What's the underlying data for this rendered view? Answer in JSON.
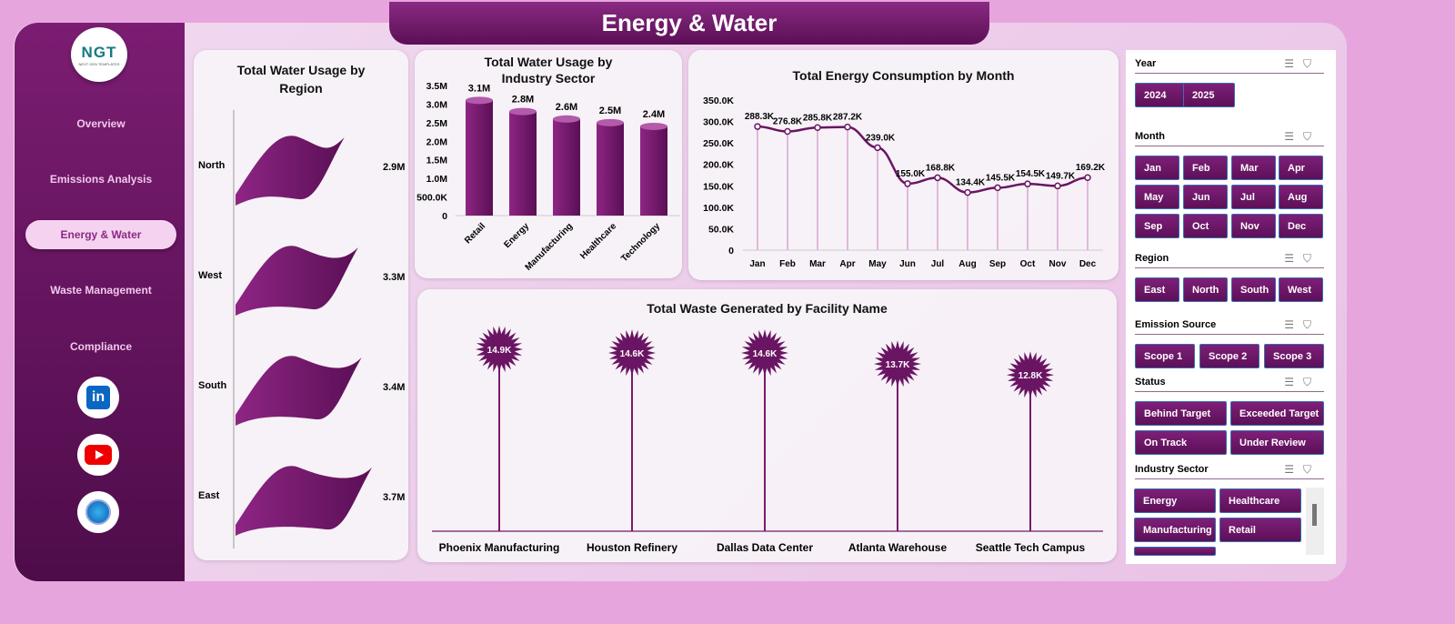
{
  "title": "Energy & Water",
  "logo": {
    "text": "NGT",
    "subtitle": "NEXT GEN TEMPLATES"
  },
  "nav": [
    {
      "label": "Overview"
    },
    {
      "label": "Emissions Analysis"
    },
    {
      "label": "Energy & Water",
      "active": true
    },
    {
      "label": "Waste Management"
    },
    {
      "label": "Compliance"
    }
  ],
  "social": [
    "linkedin-icon",
    "youtube-icon",
    "globe-icon"
  ],
  "colors": {
    "accent": "#6e1768",
    "background": "#e7a5de",
    "active_nav": "#f5d2f0"
  },
  "chart_data": [
    {
      "type": "bar",
      "title": "Total Water Usage by Region",
      "categories": [
        "North",
        "West",
        "South",
        "East"
      ],
      "values_label": [
        "2.9M",
        "3.3M",
        "3.4M",
        "3.7M"
      ],
      "values": [
        2900000,
        3300000,
        3400000,
        3700000
      ],
      "orientation": "horizontal"
    },
    {
      "type": "bar",
      "title": "Total Water Usage by Industry Sector",
      "categories": [
        "Retail",
        "Energy",
        "Manufacturing",
        "Healthcare",
        "Technology"
      ],
      "values": [
        3100000,
        2800000,
        2600000,
        2500000,
        2400000
      ],
      "value_labels": [
        "3.1M",
        "2.8M",
        "2.6M",
        "2.5M",
        "2.4M"
      ],
      "yticks": [
        "0",
        "500.0K",
        "1.0M",
        "1.5M",
        "2.0M",
        "2.5M",
        "3.0M",
        "3.5M"
      ],
      "ylim": [
        0,
        3500000
      ]
    },
    {
      "type": "line",
      "title": "Total Energy Consumption by Month",
      "categories": [
        "Jan",
        "Feb",
        "Mar",
        "Apr",
        "May",
        "Jun",
        "Jul",
        "Aug",
        "Sep",
        "Oct",
        "Nov",
        "Dec"
      ],
      "values": [
        288300,
        276800,
        285800,
        287200,
        239000,
        155000,
        168800,
        134400,
        145500,
        154500,
        149700,
        169200
      ],
      "value_labels": [
        "288.3K",
        "276.8K",
        "285.8K",
        "287.2K",
        "239.0K",
        "155.0K",
        "168.8K",
        "134.4K",
        "145.5K",
        "154.5K",
        "149.7K",
        "169.2K"
      ],
      "yticks": [
        "0",
        "50.0K",
        "100.0K",
        "150.0K",
        "200.0K",
        "250.0K",
        "300.0K",
        "350.0K"
      ],
      "ylim": [
        0,
        350000
      ]
    },
    {
      "type": "bar",
      "title": "Total Waste Generated by Facility Name",
      "categories": [
        "Phoenix Manufacturing",
        "Houston Refinery",
        "Dallas Data Center",
        "Atlanta Warehouse",
        "Seattle Tech Campus"
      ],
      "values": [
        14900,
        14600,
        14600,
        13700,
        12800
      ],
      "value_labels": [
        "14.9K",
        "14.6K",
        "14.6K",
        "13.7K",
        "12.8K"
      ],
      "style": "lollipop"
    }
  ],
  "slicers": [
    {
      "title": "Year",
      "items": [
        "2024",
        "2025"
      ]
    },
    {
      "title": "Month",
      "items": [
        "Jan",
        "Feb",
        "Mar",
        "Apr",
        "May",
        "Jun",
        "Jul",
        "Aug",
        "Sep",
        "Oct",
        "Nov",
        "Dec"
      ]
    },
    {
      "title": "Region",
      "items": [
        "East",
        "North",
        "South",
        "West"
      ]
    },
    {
      "title": "Emission Source",
      "items": [
        "Scope 1",
        "Scope 2",
        "Scope 3"
      ]
    },
    {
      "title": "Status",
      "items": [
        "Behind Target",
        "Exceeded Target",
        "On Track",
        "Under Review"
      ]
    },
    {
      "title": "Industry Sector",
      "items": [
        "Energy",
        "Healthcare",
        "Manufacturing",
        "Retail"
      ]
    }
  ]
}
